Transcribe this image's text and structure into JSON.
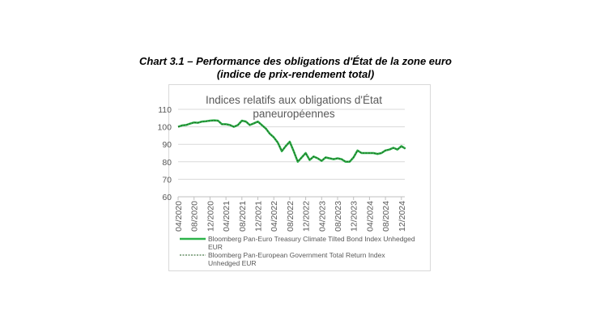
{
  "caption": {
    "line1": "Chart 3.1 – Performance des obligations d'État de la zone euro",
    "line2": "(indice de prix-rendement total)"
  },
  "chart_data": {
    "type": "line",
    "title_lines": [
      "Indices relatifs aux obligations d'État",
      "paneuropéennes"
    ],
    "xlabel": "",
    "ylabel": "",
    "ylim": [
      60,
      110
    ],
    "yticks": [
      "60",
      "70",
      "80",
      "90",
      "100",
      "110"
    ],
    "xticks": [
      "04/2020",
      "08/2020",
      "12/2020",
      "04/2021",
      "08/2021",
      "12/2021",
      "04/2022",
      "08/2022",
      "12/2022",
      "04/2023",
      "08/2023",
      "12/2023",
      "04/2024",
      "08/2024",
      "12/2024"
    ],
    "grid": "horizontal",
    "legend_position": "bottom",
    "x": [
      "04/2020",
      "05/2020",
      "06/2020",
      "07/2020",
      "08/2020",
      "09/2020",
      "10/2020",
      "11/2020",
      "12/2020",
      "01/2021",
      "02/2021",
      "03/2021",
      "04/2021",
      "05/2021",
      "06/2021",
      "07/2021",
      "08/2021",
      "09/2021",
      "10/2021",
      "11/2021",
      "12/2021",
      "01/2022",
      "02/2022",
      "03/2022",
      "04/2022",
      "05/2022",
      "06/2022",
      "07/2022",
      "08/2022",
      "09/2022",
      "10/2022",
      "11/2022",
      "12/2022",
      "01/2023",
      "02/2023",
      "03/2023",
      "04/2023",
      "05/2023",
      "06/2023",
      "07/2023",
      "08/2023",
      "09/2023",
      "10/2023",
      "11/2023",
      "12/2023",
      "01/2024",
      "02/2024",
      "03/2024",
      "04/2024",
      "05/2024",
      "06/2024",
      "07/2024",
      "08/2024",
      "09/2024",
      "10/2024",
      "11/2024",
      "12/2024",
      "01/2025"
    ],
    "series": [
      {
        "name": "Bloomberg Pan-Euro Treasury Climate Tilted Bond Index Unhedged EUR",
        "color": "#2db34a",
        "style": "solid",
        "values": [
          100,
          100.8,
          101,
          101.8,
          102.5,
          102.3,
          103,
          103.2,
          103.5,
          103.7,
          103.5,
          101.5,
          101.5,
          101,
          100,
          101,
          103.5,
          103,
          101,
          102,
          103,
          101,
          99,
          96,
          94,
          91,
          86,
          89,
          91.5,
          86,
          80,
          82.5,
          85,
          81,
          83,
          82,
          80.5,
          82.5,
          82,
          81.5,
          82,
          81.5,
          80,
          80,
          82.5,
          86.5,
          85,
          85,
          85,
          85,
          84.5,
          85,
          86.5,
          87,
          88,
          87,
          89,
          87.5
        ]
      },
      {
        "name": "Bloomberg Pan-European Government Total Return Index Unhedged EUR",
        "color": "#1e5b1e",
        "style": "dashed",
        "values": [
          100,
          100.8,
          101,
          101.8,
          102.4,
          102.3,
          102.9,
          103.2,
          103.4,
          103.6,
          103.4,
          101.5,
          101.4,
          101,
          100,
          101,
          103.4,
          103,
          101,
          102,
          102.9,
          101,
          99,
          96,
          94,
          91,
          86.2,
          89,
          91.3,
          86,
          80.2,
          82.5,
          85,
          81.1,
          83,
          82,
          80.6,
          82.5,
          82,
          81.6,
          82,
          81.5,
          80.1,
          80.1,
          82.5,
          86.4,
          85,
          85,
          85,
          85,
          84.6,
          85,
          86.5,
          87,
          87.9,
          87,
          88.9,
          87.5
        ]
      }
    ]
  }
}
